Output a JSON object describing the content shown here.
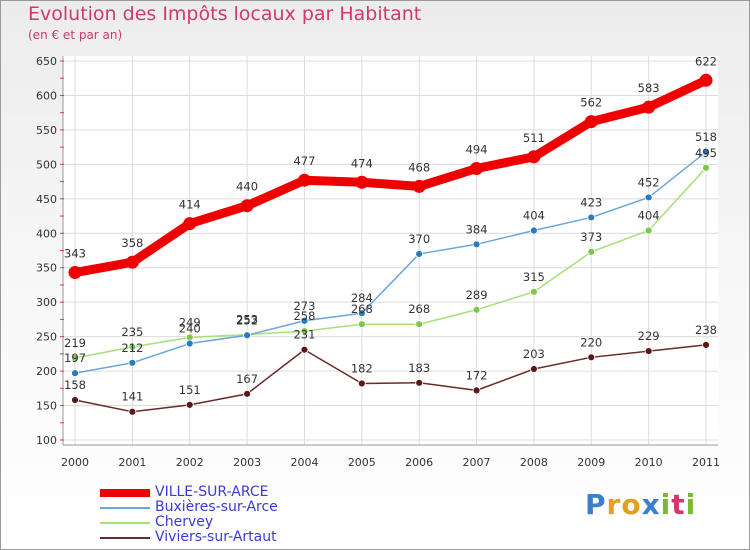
{
  "header": {
    "title": "Evolution des Impôts locaux par Habitant",
    "subtitle": "(en € et par an)"
  },
  "logo": {
    "text": "Proxiti",
    "letters": [
      "P",
      "r",
      "o",
      "x",
      "i",
      "t",
      "i"
    ],
    "colors": [
      "#3a7fd0",
      "#e8a020",
      "#e0a020",
      "#3a7fd0",
      "#7ab83a",
      "#d03a6a",
      "#7ab83a"
    ]
  },
  "chart_data": {
    "type": "line",
    "title": "Evolution des Impôts locaux par Habitant",
    "subtitle": "(en € et par an)",
    "xlabel": "",
    "ylabel": "",
    "x": [
      "2000",
      "2001",
      "2002",
      "2003",
      "2004",
      "2005",
      "2006",
      "2007",
      "2008",
      "2009",
      "2010",
      "2011"
    ],
    "ylim": [
      100,
      650
    ],
    "yticks": [
      100,
      150,
      200,
      250,
      300,
      350,
      400,
      450,
      500,
      550,
      600,
      650
    ],
    "grid": true,
    "legend_position": "bottom-left",
    "series": [
      {
        "name": "VILLE-SUR-ARCE",
        "color": "#ee0000",
        "values": [
          343,
          358,
          414,
          440,
          477,
          474,
          468,
          494,
          511,
          562,
          583,
          622
        ]
      },
      {
        "name": "Buxières-sur-Arce",
        "color": "#6aa6d8",
        "marker_color": "#2a7ac0",
        "values": [
          197,
          212,
          240,
          252,
          273,
          284,
          370,
          384,
          404,
          423,
          452,
          518
        ]
      },
      {
        "name": "Chervey",
        "color": "#a6e07a",
        "marker_color": "#7cc84a",
        "values": [
          219,
          235,
          249,
          253,
          258,
          268,
          268,
          289,
          315,
          373,
          404,
          495
        ]
      },
      {
        "name": "Viviers-sur-Artaut",
        "color": "#6a2a2a",
        "marker_color": "#5a1818",
        "values": [
          158,
          141,
          151,
          167,
          231,
          182,
          183,
          172,
          203,
          220,
          229,
          238
        ]
      }
    ]
  }
}
